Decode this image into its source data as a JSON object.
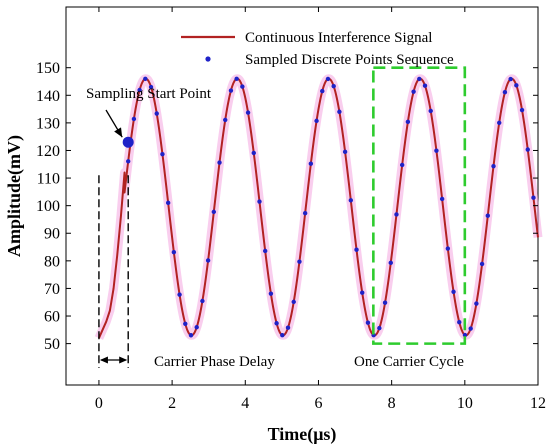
{
  "chart_data": {
    "type": "line",
    "xlabel": "Time(μs)",
    "ylabel": "Amplitude(mV)",
    "xlim": [
      -0.9,
      12
    ],
    "ylim": [
      35,
      172
    ],
    "xticks": [
      0,
      2,
      4,
      6,
      8,
      10,
      12
    ],
    "yticks": [
      50,
      60,
      70,
      80,
      90,
      100,
      110,
      120,
      130,
      140,
      150
    ],
    "legend": {
      "placement": "top-right",
      "entries": [
        "Continuous Interference Signal",
        "Sampled Discrete Points Sequence"
      ]
    },
    "series": [
      {
        "name": "Continuous Interference Signal",
        "style": "line",
        "color": "#b22222",
        "model": "sine",
        "offset": 99.5,
        "amplitude": 46.5,
        "period": 2.5,
        "peak_at": 1.28,
        "domain": [
          0,
          12
        ],
        "initial_segment": {
          "x": [
            0,
            0.1,
            0.2,
            0.3,
            0.4,
            0.5,
            0.6,
            0.7
          ],
          "y": [
            52,
            55,
            58,
            62,
            70,
            82,
            96,
            112
          ]
        }
      },
      {
        "name": "Sampled Discrete Points Sequence",
        "style": "markers",
        "color": "#1f22c8",
        "start": 0.8,
        "step": 0.156,
        "end": 12
      }
    ],
    "annotations": {
      "start_point": {
        "label": "Sampling Start Point",
        "x": 0.8,
        "y": 123
      },
      "phase_delay": {
        "label": "Carrier Phase Delay",
        "x_start": 0,
        "x_end": 0.8
      },
      "cycle": {
        "label": "One Carrier Cycle",
        "x_start": 7.5,
        "x_end": 10,
        "y_low": 50,
        "y_high": 150
      }
    },
    "colors": {
      "signal": "#b22222",
      "samples": "#1f22c8",
      "cycle_box": "#2ecc2e",
      "glow": "#f4a6e0"
    },
    "grid": false
  }
}
